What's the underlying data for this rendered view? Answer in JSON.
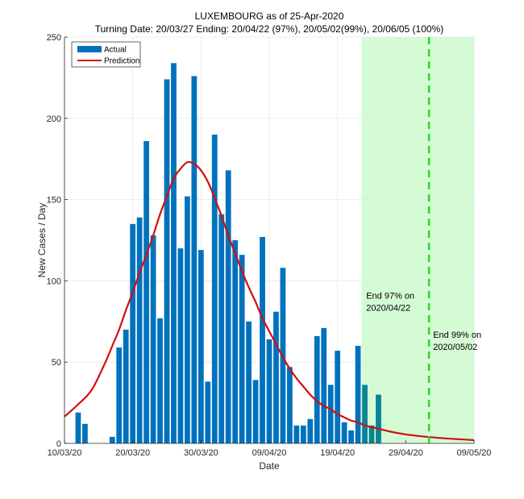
{
  "chart_data": {
    "type": "bar",
    "title": "LUXEMBOURG as of 25-Apr-2020",
    "subtitle": "Turning Date: 20/03/27  Ending: 20/04/22 (97%), 20/05/02(99%), 20/06/05 (100%)",
    "xlabel": "Date",
    "ylabel": "New Cases / Day",
    "x_start_date": "10/03/20",
    "x_range_days": [
      0,
      60
    ],
    "ylim": [
      0,
      250
    ],
    "y_ticks": [
      0,
      50,
      100,
      150,
      200,
      250
    ],
    "x_ticks": [
      {
        "day": 0,
        "label": "10/03/20"
      },
      {
        "day": 10,
        "label": "20/03/20"
      },
      {
        "day": 20,
        "label": "30/03/20"
      },
      {
        "day": 30,
        "label": "09/04/20"
      },
      {
        "day": 40,
        "label": "19/04/20"
      },
      {
        "day": 50,
        "label": "29/04/20"
      },
      {
        "day": 60,
        "label": "09/05/20"
      }
    ],
    "grid": true,
    "legend": {
      "position": "top-left",
      "entries": [
        {
          "name": "Actual",
          "type": "bar",
          "color": "#0072BD"
        },
        {
          "name": "Prediction",
          "type": "line",
          "color": "#D01010"
        }
      ]
    },
    "series": [
      {
        "name": "Actual",
        "type": "bar",
        "color": "#0072BD",
        "overlap_color": "#0A8494",
        "days": [
          2,
          3,
          4,
          5,
          6,
          7,
          8,
          9,
          10,
          11,
          12,
          13,
          14,
          15,
          16,
          17,
          18,
          19,
          20,
          21,
          22,
          23,
          24,
          25,
          26,
          27,
          28,
          29,
          30,
          31,
          32,
          33,
          34,
          35,
          36,
          37,
          38,
          39,
          40,
          41,
          42,
          43,
          44,
          45,
          46
        ],
        "values": [
          19,
          12,
          0,
          0,
          0,
          4,
          59,
          70,
          135,
          139,
          186,
          128,
          77,
          224,
          234,
          120,
          152,
          226,
          119,
          38,
          190,
          141,
          168,
          125,
          116,
          75,
          39,
          127,
          64,
          81,
          108,
          47,
          11,
          11,
          15,
          66,
          71,
          36,
          57,
          13,
          8,
          60,
          36,
          11,
          30
        ]
      },
      {
        "name": "Prediction",
        "type": "line",
        "color": "#D01010",
        "days": [
          0,
          2,
          4,
          6,
          7,
          8,
          9,
          10,
          11,
          12,
          13,
          14,
          15,
          16,
          17,
          18,
          19,
          20,
          21,
          22,
          23,
          24,
          25,
          26,
          27,
          28,
          29,
          30,
          31,
          32,
          33,
          34,
          35,
          36,
          37,
          38,
          39,
          40,
          41,
          42,
          43,
          44,
          45,
          46,
          48,
          50,
          52,
          54,
          56,
          58,
          60
        ],
        "values": [
          16.5,
          24,
          33,
          50,
          60,
          70,
          82,
          93,
          105,
          116,
          128,
          141,
          152,
          163,
          169,
          173,
          172,
          168,
          161,
          151,
          140,
          128,
          117,
          106,
          96,
          87,
          77,
          69,
          61,
          53,
          46,
          40,
          35,
          30,
          26,
          23,
          21,
          18,
          16,
          14,
          13,
          11,
          10,
          9,
          7,
          5.5,
          4.5,
          3.7,
          3,
          2.5,
          2
        ]
      }
    ],
    "shaded_region": {
      "from_day": 43.5,
      "to_day": 60,
      "color": "#D5FBD5",
      "meaning": "projected ending period"
    },
    "vertical_line": {
      "day": 53.4,
      "color": "#22DD22",
      "style": "dashed"
    },
    "annotations": [
      {
        "text_lines": [
          "End 97% on",
          "2020/04/22"
        ],
        "anchor_day": 44.2,
        "anchor_value": 89
      },
      {
        "text_lines": [
          "End 99% on",
          "2020/05/02"
        ],
        "anchor_day": 54,
        "anchor_value": 65
      }
    ]
  }
}
